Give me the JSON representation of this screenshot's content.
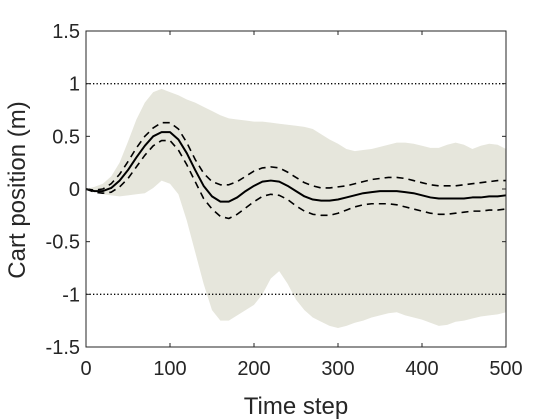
{
  "chart_data": {
    "type": "line",
    "title": "",
    "xlabel": "Time step",
    "ylabel": "Cart position (m)",
    "xlim": [
      0,
      500
    ],
    "ylim": [
      -1.5,
      1.5
    ],
    "xticks": [
      0,
      100,
      200,
      300,
      400,
      500
    ],
    "yticks": [
      -1.5,
      -1,
      -0.5,
      0,
      0.5,
      1,
      1.5
    ],
    "xtick_labels": [
      "0",
      "100",
      "200",
      "300",
      "400",
      "500"
    ],
    "ytick_labels": [
      "-1.5",
      "-1",
      "-0.5",
      "0",
      "0.5",
      "1",
      "1.5"
    ],
    "grid": false,
    "legend": "none",
    "colors": {
      "band": "#e6e6dc",
      "line": "#000000",
      "axes": "#262626"
    },
    "constraints": [
      {
        "y": 1,
        "style": "dotted"
      },
      {
        "y": -1,
        "style": "dotted"
      }
    ],
    "band": {
      "x": [
        0,
        10,
        20,
        30,
        40,
        50,
        60,
        70,
        80,
        90,
        100,
        110,
        120,
        130,
        140,
        150,
        160,
        170,
        180,
        190,
        200,
        210,
        220,
        230,
        240,
        250,
        260,
        270,
        280,
        290,
        300,
        310,
        320,
        330,
        340,
        350,
        360,
        370,
        380,
        390,
        400,
        410,
        420,
        430,
        440,
        450,
        460,
        470,
        480,
        490,
        500
      ],
      "upper": [
        0.0,
        0.02,
        0.05,
        0.12,
        0.25,
        0.45,
        0.66,
        0.82,
        0.92,
        0.95,
        0.92,
        0.89,
        0.85,
        0.82,
        0.78,
        0.74,
        0.7,
        0.67,
        0.66,
        0.65,
        0.64,
        0.64,
        0.63,
        0.62,
        0.61,
        0.6,
        0.59,
        0.57,
        0.52,
        0.47,
        0.43,
        0.38,
        0.36,
        0.37,
        0.38,
        0.4,
        0.42,
        0.44,
        0.44,
        0.43,
        0.41,
        0.39,
        0.39,
        0.42,
        0.44,
        0.42,
        0.38,
        0.41,
        0.43,
        0.42,
        0.38
      ],
      "lower": [
        0.0,
        -0.02,
        -0.05,
        -0.06,
        -0.07,
        -0.06,
        -0.05,
        -0.04,
        0.01,
        0.08,
        0.05,
        -0.05,
        -0.3,
        -0.6,
        -0.9,
        -1.15,
        -1.25,
        -1.25,
        -1.2,
        -1.15,
        -1.1,
        -1.0,
        -0.85,
        -0.78,
        -0.9,
        -1.05,
        -1.15,
        -1.22,
        -1.26,
        -1.3,
        -1.32,
        -1.3,
        -1.27,
        -1.25,
        -1.22,
        -1.2,
        -1.18,
        -1.17,
        -1.2,
        -1.22,
        -1.24,
        -1.27,
        -1.3,
        -1.29,
        -1.26,
        -1.25,
        -1.23,
        -1.21,
        -1.2,
        -1.19,
        -1.17
      ]
    },
    "series": [
      {
        "style": "solid",
        "x": [
          0,
          10,
          20,
          30,
          40,
          50,
          60,
          70,
          80,
          90,
          100,
          110,
          120,
          130,
          140,
          150,
          160,
          170,
          180,
          190,
          200,
          210,
          220,
          230,
          240,
          250,
          260,
          270,
          280,
          290,
          300,
          310,
          320,
          330,
          340,
          350,
          360,
          370,
          380,
          390,
          400,
          410,
          420,
          430,
          440,
          450,
          460,
          470,
          480,
          490,
          500
        ],
        "y": [
          0.0,
          -0.02,
          -0.02,
          0.01,
          0.08,
          0.18,
          0.3,
          0.41,
          0.5,
          0.54,
          0.54,
          0.47,
          0.34,
          0.18,
          0.03,
          -0.07,
          -0.12,
          -0.12,
          -0.08,
          -0.02,
          0.03,
          0.07,
          0.08,
          0.07,
          0.03,
          -0.02,
          -0.07,
          -0.1,
          -0.11,
          -0.11,
          -0.1,
          -0.08,
          -0.06,
          -0.04,
          -0.03,
          -0.02,
          -0.02,
          -0.02,
          -0.03,
          -0.04,
          -0.06,
          -0.08,
          -0.09,
          -0.09,
          -0.09,
          -0.09,
          -0.08,
          -0.08,
          -0.07,
          -0.07,
          -0.06
        ]
      },
      {
        "style": "dashed",
        "x": [
          0,
          10,
          20,
          30,
          40,
          50,
          60,
          70,
          80,
          90,
          100,
          110,
          120,
          130,
          140,
          150,
          160,
          170,
          180,
          190,
          200,
          210,
          220,
          230,
          240,
          250,
          260,
          270,
          280,
          290,
          300,
          310,
          320,
          330,
          340,
          350,
          360,
          370,
          380,
          390,
          400,
          410,
          420,
          430,
          440,
          450,
          460,
          470,
          480,
          490,
          500
        ],
        "y": [
          0.0,
          -0.01,
          0.0,
          0.05,
          0.14,
          0.26,
          0.39,
          0.5,
          0.58,
          0.63,
          0.63,
          0.57,
          0.44,
          0.28,
          0.15,
          0.07,
          0.04,
          0.04,
          0.07,
          0.12,
          0.17,
          0.2,
          0.21,
          0.2,
          0.16,
          0.11,
          0.06,
          0.03,
          0.01,
          0.01,
          0.02,
          0.03,
          0.05,
          0.07,
          0.09,
          0.1,
          0.11,
          0.11,
          0.1,
          0.08,
          0.06,
          0.04,
          0.03,
          0.03,
          0.03,
          0.04,
          0.05,
          0.06,
          0.07,
          0.08,
          0.08
        ]
      },
      {
        "style": "dashed",
        "x": [
          0,
          10,
          20,
          30,
          40,
          50,
          60,
          70,
          80,
          90,
          100,
          110,
          120,
          130,
          140,
          150,
          160,
          170,
          180,
          190,
          200,
          210,
          220,
          230,
          240,
          250,
          260,
          270,
          280,
          290,
          300,
          310,
          320,
          330,
          340,
          350,
          360,
          370,
          380,
          390,
          400,
          410,
          420,
          430,
          440,
          450,
          460,
          470,
          480,
          490,
          500
        ],
        "y": [
          0.0,
          -0.03,
          -0.04,
          -0.03,
          0.02,
          0.1,
          0.21,
          0.32,
          0.41,
          0.46,
          0.46,
          0.37,
          0.23,
          0.07,
          -0.09,
          -0.19,
          -0.26,
          -0.28,
          -0.24,
          -0.18,
          -0.12,
          -0.07,
          -0.05,
          -0.06,
          -0.1,
          -0.16,
          -0.21,
          -0.24,
          -0.25,
          -0.25,
          -0.23,
          -0.2,
          -0.17,
          -0.15,
          -0.14,
          -0.14,
          -0.14,
          -0.15,
          -0.17,
          -0.19,
          -0.21,
          -0.23,
          -0.24,
          -0.24,
          -0.23,
          -0.22,
          -0.21,
          -0.21,
          -0.2,
          -0.2,
          -0.19
        ]
      }
    ]
  }
}
